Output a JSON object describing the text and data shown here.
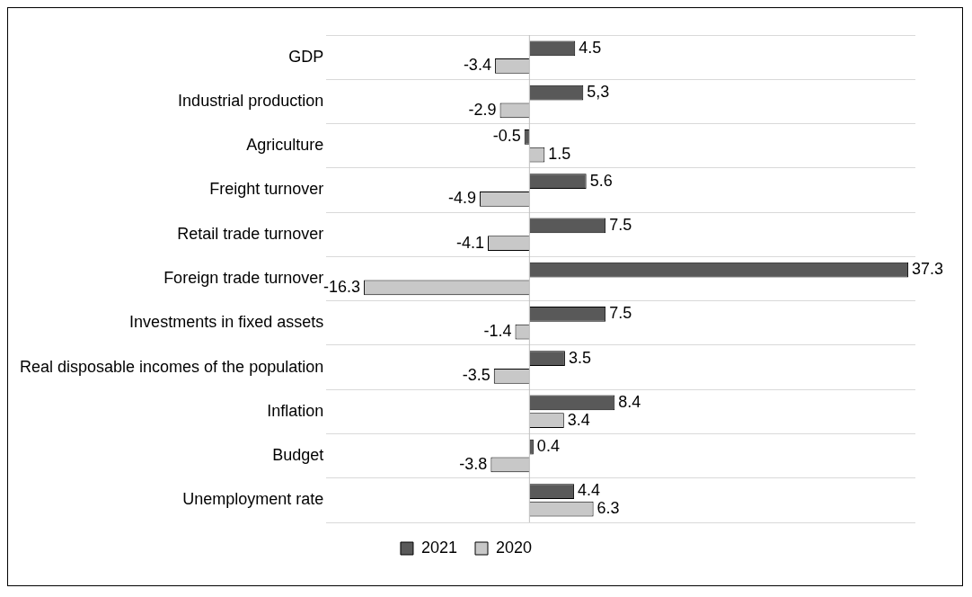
{
  "chart_data": {
    "type": "bar",
    "orientation": "horizontal",
    "categories": [
      "GDP",
      "Industrial production",
      "Agriculture",
      "Freight turnover",
      "Retail trade turnover",
      "Foreign trade turnover",
      "Investments in fixed assets",
      "Real disposable incomes of the population",
      "Inflation",
      "Budget",
      "Unemployment rate"
    ],
    "series": [
      {
        "name": "2021",
        "color": "#595959",
        "values": [
          4.5,
          5.3,
          -0.5,
          5.6,
          7.5,
          37.3,
          7.5,
          3.5,
          8.4,
          0.4,
          4.4
        ],
        "value_labels": [
          "4.5",
          "5,3",
          "-0.5",
          "5.6",
          "7.5",
          "37.3",
          "7.5",
          "3.5",
          "8.4",
          "0.4",
          "4.4"
        ]
      },
      {
        "name": "2020",
        "color": "#c8c8c8",
        "values": [
          -3.4,
          -2.9,
          1.5,
          -4.9,
          -4.1,
          -16.3,
          -1.4,
          -3.5,
          3.4,
          -3.8,
          6.3
        ],
        "value_labels": [
          "-3.4",
          "-2.9",
          "1.5",
          "-4.9",
          "-4.1",
          "-16.3",
          "-1.4",
          "-3.5",
          "3.4",
          "-3.8",
          "6.3"
        ]
      }
    ],
    "xlim": [
      -20,
      38
    ],
    "grid": "y",
    "legend": "bottom",
    "tick_labels": "y"
  }
}
